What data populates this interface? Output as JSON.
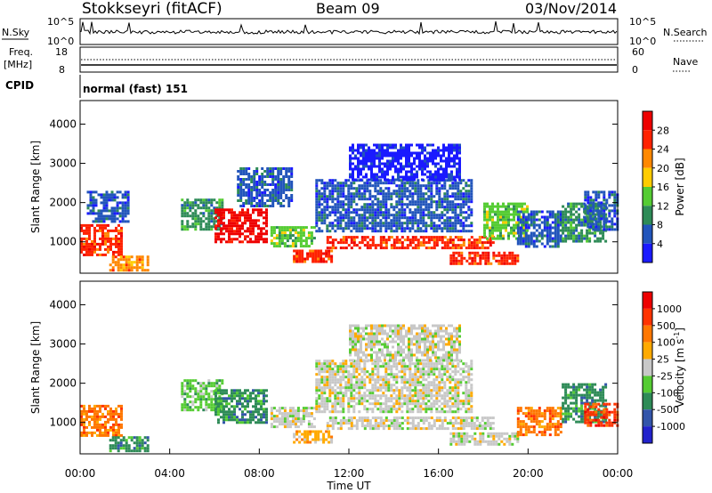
{
  "header": {
    "station": "Stokkseyri (fitACF)",
    "beam": "Beam 09",
    "date": "03/Nov/2014"
  },
  "status_panels": {
    "nsky_label": "N.Sky",
    "nsky_ticks": [
      "10^5",
      "10^0"
    ],
    "nsearch_label": "N.Search",
    "nsearch_ticks": [
      "10^5",
      "10^0"
    ],
    "freq_label_top": "Freq.",
    "freq_label_unit": "[MHz]",
    "freq_ticks": [
      "18",
      "8"
    ],
    "nave_label": "Nave",
    "nave_ticks": [
      "60",
      "0"
    ],
    "cpid_label": "CPID",
    "cpid_value": "normal (fast) 151"
  },
  "chart_data": [
    {
      "type": "heatmap",
      "name": "power",
      "ylabel": "Slant Range [km]",
      "yticks": [
        "1000",
        "2000",
        "3000",
        "4000"
      ],
      "ylim": [
        200,
        4600
      ],
      "xlim": [
        0,
        24
      ],
      "colorbar_title": "Power [dB]",
      "colorbar_ticks": [
        "4",
        "8",
        "12",
        "16",
        "20",
        "24",
        "28"
      ],
      "colorbar_colors": [
        "#1a1aff",
        "#2255bb",
        "#2e8b57",
        "#55cc33",
        "#ffcc00",
        "#ff8800",
        "#ff2200",
        "#ee0000"
      ],
      "regions": [
        {
          "t0": 0.0,
          "t1": 1.9,
          "r0": 700,
          "r1": 1450,
          "level": 6
        },
        {
          "t0": 0.3,
          "t1": 2.2,
          "r0": 1500,
          "r1": 2300,
          "level": 1
        },
        {
          "t0": 1.3,
          "t1": 3.0,
          "r0": 300,
          "r1": 650,
          "level": 5
        },
        {
          "t0": 4.5,
          "t1": 6.3,
          "r0": 1300,
          "r1": 2100,
          "level": 2
        },
        {
          "t0": 6.0,
          "t1": 8.3,
          "r0": 1000,
          "r1": 1850,
          "level": 7
        },
        {
          "t0": 7.0,
          "t1": 9.5,
          "r0": 1900,
          "r1": 2900,
          "level": 1
        },
        {
          "t0": 8.5,
          "t1": 10.5,
          "r0": 900,
          "r1": 1400,
          "level": 3
        },
        {
          "t0": 9.5,
          "t1": 11.2,
          "r0": 500,
          "r1": 800,
          "level": 6
        },
        {
          "t0": 10.5,
          "t1": 17.5,
          "r0": 1300,
          "r1": 2600,
          "level": 1
        },
        {
          "t0": 11.0,
          "t1": 18.5,
          "r0": 850,
          "r1": 1150,
          "level": 6
        },
        {
          "t0": 12.0,
          "t1": 17.0,
          "r0": 2600,
          "r1": 3500,
          "level": 0
        },
        {
          "t0": 16.5,
          "t1": 19.5,
          "r0": 450,
          "r1": 750,
          "level": 6
        },
        {
          "t0": 18.0,
          "t1": 20.0,
          "r0": 1100,
          "r1": 2000,
          "level": 3
        },
        {
          "t0": 19.5,
          "t1": 21.5,
          "r0": 900,
          "r1": 1800,
          "level": 1
        },
        {
          "t0": 21.5,
          "t1": 23.5,
          "r0": 1000,
          "r1": 2000,
          "level": 2
        },
        {
          "t0": 22.5,
          "t1": 24.0,
          "r0": 1300,
          "r1": 2300,
          "level": 1
        }
      ]
    },
    {
      "type": "heatmap",
      "name": "velocity",
      "ylabel": "Slant Range [km]",
      "yticks": [
        "1000",
        "2000",
        "3000",
        "4000"
      ],
      "ylim": [
        200,
        4600
      ],
      "xlim": [
        0,
        24
      ],
      "xticks": [
        "00:00",
        "04:00",
        "08:00",
        "12:00",
        "16:00",
        "20:00",
        "00:00"
      ],
      "xlabel": "Time UT",
      "colorbar_title": "Velocity [m s",
      "colorbar_title_sup": "-1",
      "colorbar_title_end": "]",
      "colorbar_ticks": [
        "1000",
        "500",
        "100",
        "25",
        "-25",
        "-100",
        "-500",
        "-1000"
      ],
      "colorbar_colors": [
        "#2222cc",
        "#3355aa",
        "#2e8b57",
        "#55cc33",
        "#c8c8c8",
        "#ffaa00",
        "#ff7700",
        "#ff3300",
        "#ee0000"
      ],
      "regions": [
        {
          "t0": 0.0,
          "t1": 1.9,
          "r0": 700,
          "r1": 1450,
          "level": 6
        },
        {
          "t0": 1.3,
          "t1": 3.0,
          "r0": 300,
          "r1": 650,
          "level": 2
        },
        {
          "t0": 4.5,
          "t1": 6.3,
          "r0": 1300,
          "r1": 2100,
          "level": 3
        },
        {
          "t0": 6.0,
          "t1": 8.3,
          "r0": 1000,
          "r1": 1850,
          "level": 2
        },
        {
          "t0": 8.5,
          "t1": 10.5,
          "r0": 900,
          "r1": 1400,
          "level": 4
        },
        {
          "t0": 9.5,
          "t1": 11.2,
          "r0": 500,
          "r1": 800,
          "level": 5
        },
        {
          "t0": 10.5,
          "t1": 17.5,
          "r0": 1300,
          "r1": 2600,
          "level": 4
        },
        {
          "t0": 11.0,
          "t1": 18.5,
          "r0": 850,
          "r1": 1150,
          "level": 4
        },
        {
          "t0": 12.0,
          "t1": 17.0,
          "r0": 2600,
          "r1": 3500,
          "level": 4
        },
        {
          "t0": 16.5,
          "t1": 19.5,
          "r0": 450,
          "r1": 750,
          "level": 4
        },
        {
          "t0": 19.5,
          "t1": 21.5,
          "r0": 700,
          "r1": 1400,
          "level": 6
        },
        {
          "t0": 21.5,
          "t1": 23.5,
          "r0": 1000,
          "r1": 2000,
          "level": 2
        },
        {
          "t0": 22.5,
          "t1": 24.0,
          "r0": 900,
          "r1": 1500,
          "level": 7
        }
      ]
    }
  ]
}
